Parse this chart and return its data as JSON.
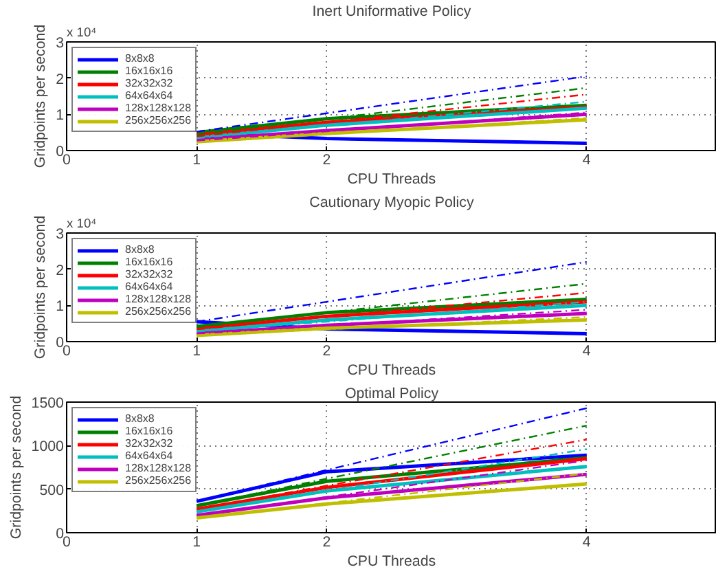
{
  "chart_data": [
    {
      "type": "line",
      "title": "Inert Uniformative Policy",
      "xlabel": "CPU Threads",
      "ylabel": "Gridpoints per second",
      "annotations": [
        "x 10⁴"
      ],
      "x": [
        1,
        2,
        4
      ],
      "xlim": [
        0,
        5
      ],
      "xticks": [
        0,
        1,
        2,
        4
      ],
      "ylim": [
        0,
        3
      ],
      "yticks": [
        0,
        1,
        2,
        3
      ],
      "grid": true,
      "legend": "top left",
      "line_style": "solid",
      "series": [
        {
          "name": "8x8x8",
          "color": "#0000ff",
          "values": [
            0.48,
            0.33,
            0.2
          ]
        },
        {
          "name": "16x16x16",
          "color": "#008000",
          "values": [
            0.5,
            0.88,
            1.25
          ]
        },
        {
          "name": "32x32x32",
          "color": "#ff0000",
          "values": [
            0.43,
            0.78,
            1.2
          ]
        },
        {
          "name": "64x64x64",
          "color": "#00bfbf",
          "values": [
            0.35,
            0.7,
            1.17
          ]
        },
        {
          "name": "128x128x128",
          "color": "#bf00bf",
          "values": [
            0.3,
            0.55,
            1.0
          ]
        },
        {
          "name": "256x256x256",
          "color": "#bfbf00",
          "values": [
            0.24,
            0.47,
            0.85
          ]
        },
        {
          "color": "#0000ff",
          "values": [
            0.52,
            1.03,
            2.05
          ],
          "line_style": "dashed"
        },
        {
          "color": "#008000",
          "values": [
            0.44,
            0.87,
            1.73
          ],
          "line_style": "dashed"
        },
        {
          "color": "#ff0000",
          "values": [
            0.39,
            0.78,
            1.55
          ],
          "line_style": "dashed"
        },
        {
          "color": "#00bfbf",
          "values": [
            0.34,
            0.68,
            1.35
          ],
          "line_style": "dashed"
        },
        {
          "color": "#bf00bf",
          "values": [
            0.27,
            0.53,
            1.05
          ],
          "line_style": "dashed"
        },
        {
          "color": "#bfbf00",
          "values": [
            0.23,
            0.45,
            0.9
          ],
          "line_style": "dashed"
        }
      ]
    },
    {
      "type": "line",
      "title": "Cautionary Myopic Policy",
      "xlabel": "CPU Threads",
      "ylabel": "Gridpoints per second",
      "annotations": [
        "x 10⁴"
      ],
      "x": [
        1,
        2,
        4
      ],
      "xlim": [
        0,
        5
      ],
      "xticks": [
        0,
        1,
        2,
        4
      ],
      "ylim": [
        0,
        3
      ],
      "yticks": [
        0,
        1,
        2,
        3
      ],
      "grid": true,
      "legend": "top left",
      "line_style": "solid",
      "series": [
        {
          "name": "8x8x8",
          "color": "#0000ff",
          "values": [
            0.55,
            0.35,
            0.22
          ]
        },
        {
          "name": "16x16x16",
          "color": "#008000",
          "values": [
            0.42,
            0.8,
            1.17
          ]
        },
        {
          "name": "32x32x32",
          "color": "#ff0000",
          "values": [
            0.35,
            0.7,
            1.1
          ]
        },
        {
          "name": "64x64x64",
          "color": "#00bfbf",
          "values": [
            0.28,
            0.6,
            1.0
          ]
        },
        {
          "name": "128x128x128",
          "color": "#bf00bf",
          "values": [
            0.22,
            0.45,
            0.78
          ]
        },
        {
          "name": "256x256x256",
          "color": "#bfbf00",
          "values": [
            0.17,
            0.37,
            0.6
          ]
        },
        {
          "color": "#0000ff",
          "values": [
            0.55,
            1.1,
            2.2
          ],
          "line_style": "dashed"
        },
        {
          "color": "#008000",
          "values": [
            0.4,
            0.8,
            1.6
          ],
          "line_style": "dashed"
        },
        {
          "color": "#ff0000",
          "values": [
            0.34,
            0.68,
            1.35
          ],
          "line_style": "dashed"
        },
        {
          "color": "#00bfbf",
          "values": [
            0.28,
            0.55,
            1.1
          ],
          "line_style": "dashed"
        },
        {
          "color": "#bf00bf",
          "values": [
            0.22,
            0.44,
            0.88
          ],
          "line_style": "dashed"
        },
        {
          "color": "#bfbf00",
          "values": [
            0.17,
            0.34,
            0.68
          ],
          "line_style": "dashed"
        }
      ]
    },
    {
      "type": "line",
      "title": "Optimal Policy",
      "xlabel": "CPU Threads",
      "ylabel": "Gridpoints per second",
      "x": [
        1,
        2,
        4
      ],
      "xlim": [
        0,
        5
      ],
      "xticks": [
        0,
        1,
        2,
        4
      ],
      "ylim": [
        0,
        1500
      ],
      "yticks": [
        0,
        500,
        1000,
        1500
      ],
      "grid": true,
      "legend": "top left",
      "line_style": "solid",
      "series": [
        {
          "name": "8x8x8",
          "color": "#0000ff",
          "values": [
            360,
            700,
            890
          ]
        },
        {
          "name": "16x16x16",
          "color": "#008000",
          "values": [
            310,
            590,
            860
          ]
        },
        {
          "name": "32x32x32",
          "color": "#ff0000",
          "values": [
            270,
            520,
            850
          ]
        },
        {
          "name": "64x64x64",
          "color": "#00bfbf",
          "values": [
            240,
            480,
            760
          ]
        },
        {
          "name": "128x128x128",
          "color": "#bf00bf",
          "values": [
            200,
            400,
            670
          ]
        },
        {
          "name": "256x256x256",
          "color": "#bfbf00",
          "values": [
            170,
            330,
            560
          ]
        },
        {
          "color": "#0000ff",
          "values": [
            360,
            720,
            1430
          ],
          "line_style": "dashed"
        },
        {
          "color": "#008000",
          "values": [
            310,
            620,
            1230
          ],
          "line_style": "dashed"
        },
        {
          "color": "#ff0000",
          "values": [
            270,
            540,
            1070
          ],
          "line_style": "dashed"
        },
        {
          "color": "#00bfbf",
          "values": [
            240,
            480,
            960
          ],
          "line_style": "dashed"
        },
        {
          "color": "#bf00bf",
          "values": [
            200,
            410,
            830
          ],
          "line_style": "dashed"
        },
        {
          "color": "#bfbf00",
          "values": [
            170,
            340,
            680
          ],
          "line_style": "dashed"
        }
      ]
    }
  ]
}
